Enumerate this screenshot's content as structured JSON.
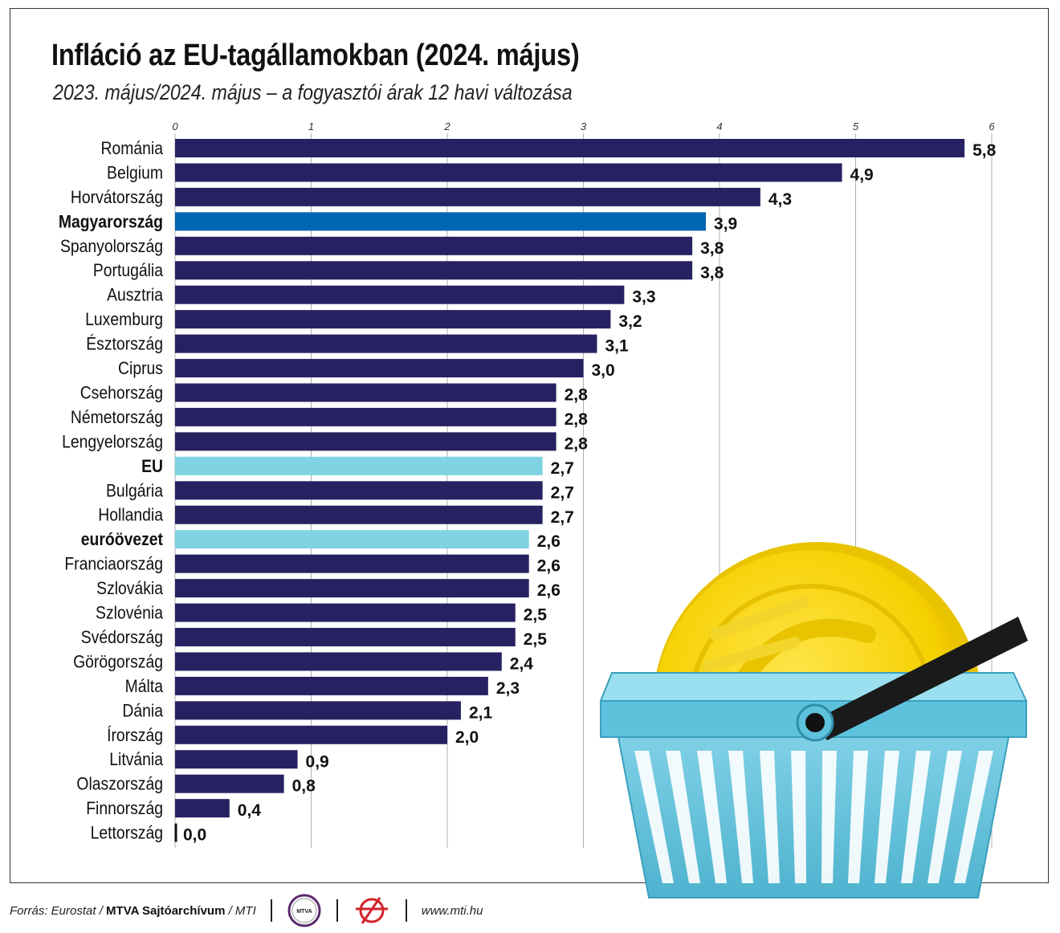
{
  "header": {
    "title": "Infláció az EU-tagállamokban (2024. május)",
    "subtitle": "2023. május/2024. május – a fogyasztói árak 12 havi változása"
  },
  "colors": {
    "bar_default": "#262262",
    "bar_hungary": "#0066b3",
    "bar_aggregate": "#7fd3e3",
    "grid": "#b0b0b0"
  },
  "chart_data": {
    "type": "bar",
    "orientation": "horizontal",
    "xlim": [
      0,
      6
    ],
    "xticks": [
      "0",
      "1",
      "2",
      "3",
      "4",
      "5",
      "6"
    ],
    "grid": true,
    "categories": [
      "Románia",
      "Belgium",
      "Horvátország",
      "Magyarország",
      "Spanyolország",
      "Portugália",
      "Ausztria",
      "Luxemburg",
      "Észtország",
      "Ciprus",
      "Csehország",
      "Németország",
      "Lengyelország",
      "EU",
      "Bulgária",
      "Hollandia",
      "euróövezet",
      "Franciaország",
      "Szlovákia",
      "Szlovénia",
      "Svédország",
      "Görögország",
      "Málta",
      "Dánia",
      "Írország",
      "Litvánia",
      "Olaszország",
      "Finnország",
      "Lettország"
    ],
    "values": [
      5.8,
      4.9,
      4.3,
      3.9,
      3.8,
      3.8,
      3.3,
      3.2,
      3.1,
      3.0,
      2.8,
      2.8,
      2.8,
      2.7,
      2.7,
      2.7,
      2.6,
      2.6,
      2.6,
      2.5,
      2.5,
      2.4,
      2.3,
      2.1,
      2.0,
      0.9,
      0.8,
      0.4,
      0.0
    ],
    "value_labels": [
      "5,8",
      "4,9",
      "4,3",
      "3,9",
      "3,8",
      "3,8",
      "3,3",
      "3,2",
      "3,1",
      "3,0",
      "2,8",
      "2,8",
      "2,8",
      "2,7",
      "2,7",
      "2,7",
      "2,6",
      "2,6",
      "2,6",
      "2,5",
      "2,5",
      "2,4",
      "2,3",
      "2,1",
      "2,0",
      "0,9",
      "0,8",
      "0,4",
      "0,0"
    ],
    "highlight": {
      "Magyarország": "hungary",
      "EU": "aggregate",
      "euróövezet": "aggregate"
    },
    "bold_labels": [
      "Magyarország",
      "EU",
      "euróövezet"
    ]
  },
  "footer": {
    "source_prefix": "Forrás: Eurostat /",
    "source_org": "MTVA Sajtóarchívum",
    "source_suffix": "/ MTI",
    "logo1_text": "MTVA",
    "website": "www.mti.hu"
  }
}
